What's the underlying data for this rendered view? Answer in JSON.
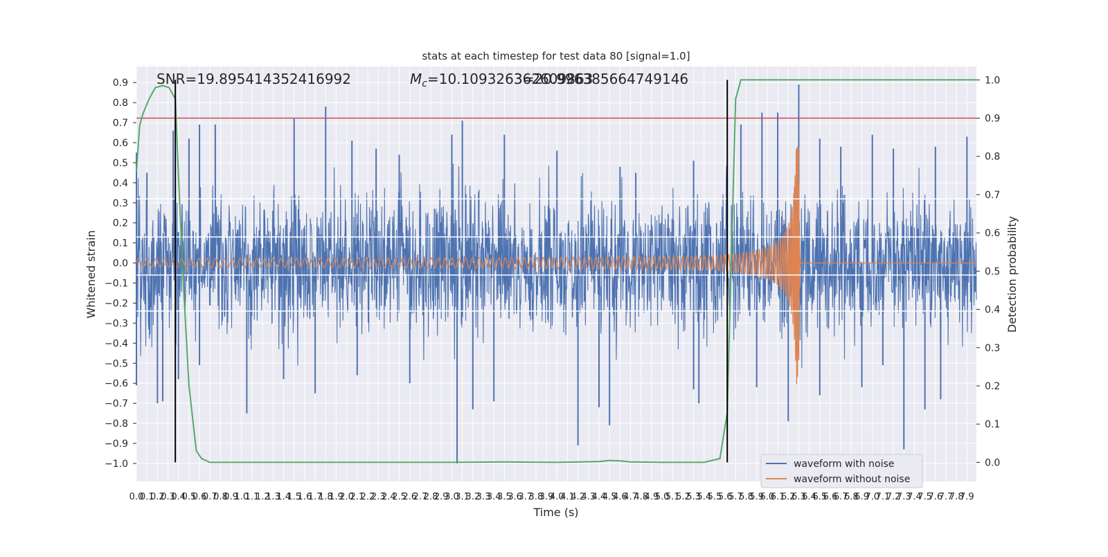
{
  "chart_data": {
    "type": "line",
    "title": "stats at each timestep for test data 80 [signal=1.0]",
    "xlabel": "Time (s)",
    "ylabel": "Whitened strain",
    "y2label": "Detection probability",
    "xlim": [
      0.0,
      7.99
    ],
    "ylim": [
      -1.09,
      0.98
    ],
    "y2lim": [
      -0.05,
      1.035
    ],
    "x_ticks": [
      0.0,
      0.1,
      0.2,
      0.3,
      0.4,
      0.5,
      0.6,
      0.7,
      0.8,
      0.9,
      1.0,
      1.1,
      1.2,
      1.3,
      1.4,
      1.5,
      1.6,
      1.7,
      1.8,
      1.9,
      2.0,
      2.1,
      2.2,
      2.3,
      2.4,
      2.5,
      2.6,
      2.7,
      2.8,
      2.9,
      3.0,
      3.1,
      3.2,
      3.3,
      3.4,
      3.5,
      3.6,
      3.7,
      3.8,
      3.9,
      4.0,
      4.1,
      4.2,
      4.3,
      4.4,
      4.5,
      4.6,
      4.7,
      4.8,
      4.9,
      5.0,
      5.1,
      5.2,
      5.3,
      5.4,
      5.5,
      5.6,
      5.7,
      5.8,
      5.9,
      6.0,
      6.1,
      6.2,
      6.3,
      6.4,
      6.5,
      6.6,
      6.7,
      6.8,
      6.9,
      7.0,
      7.1,
      7.2,
      7.3,
      7.4,
      7.5,
      7.6,
      7.7,
      7.8,
      7.9
    ],
    "y_ticks": [
      -1.0,
      -0.9,
      -0.8,
      -0.7,
      -0.6,
      -0.5,
      -0.4,
      -0.3,
      -0.2,
      -0.1,
      0.0,
      0.1,
      0.2,
      0.3,
      0.4,
      0.5,
      0.6,
      0.7,
      0.8,
      0.9
    ],
    "y2_ticks": [
      0.0,
      0.1,
      0.2,
      0.3,
      0.4,
      0.5,
      0.6,
      0.7,
      0.8,
      0.9,
      1.0
    ],
    "grid": true,
    "legend_position": "bottom-right",
    "annotations": {
      "snr": "SNR=19.895414352416992",
      "mc_prefix": "M",
      "mc_sub": "c",
      "mc_value": "=10.109326362609863",
      "overlap": "3=20.996385664749146"
    },
    "series": [
      {
        "name": "waveform with noise",
        "color": "#4c72b0",
        "axis": "left",
        "noise_band_q": 0.27,
        "spikes": [
          [
            0.0,
            0.55
          ],
          [
            0.1,
            0.45
          ],
          [
            0.35,
            0.66
          ],
          [
            0.5,
            0.62
          ],
          [
            0.6,
            0.69
          ],
          [
            0.75,
            0.69
          ],
          [
            1.5,
            0.72
          ],
          [
            1.8,
            0.78
          ],
          [
            2.05,
            0.61
          ],
          [
            2.28,
            0.57
          ],
          [
            2.5,
            0.54
          ],
          [
            3.0,
            0.64
          ],
          [
            3.1,
            0.71
          ],
          [
            3.5,
            0.64
          ],
          [
            4.0,
            0.56
          ],
          [
            4.6,
            0.48
          ],
          [
            4.75,
            0.45
          ],
          [
            5.3,
            0.51
          ],
          [
            5.75,
            0.69
          ],
          [
            5.95,
            0.75
          ],
          [
            6.1,
            0.75
          ],
          [
            6.3,
            0.89
          ],
          [
            6.5,
            0.62
          ],
          [
            6.7,
            0.58
          ],
          [
            7.0,
            0.64
          ],
          [
            7.2,
            0.57
          ],
          [
            7.6,
            0.58
          ],
          [
            7.9,
            0.63
          ],
          [
            0.0,
            -0.61
          ],
          [
            0.2,
            -0.7
          ],
          [
            0.25,
            -0.69
          ],
          [
            0.4,
            -0.58
          ],
          [
            0.6,
            -0.51
          ],
          [
            1.05,
            -0.75
          ],
          [
            1.4,
            -0.58
          ],
          [
            1.7,
            -0.65
          ],
          [
            2.1,
            -0.56
          ],
          [
            2.6,
            -0.6
          ],
          [
            3.05,
            -1.0
          ],
          [
            3.2,
            -0.73
          ],
          [
            3.4,
            -0.69
          ],
          [
            4.2,
            -0.91
          ],
          [
            4.4,
            -0.72
          ],
          [
            4.5,
            -0.81
          ],
          [
            5.3,
            -0.63
          ],
          [
            5.35,
            -0.7
          ],
          [
            5.9,
            -0.62
          ],
          [
            6.2,
            -0.79
          ],
          [
            6.5,
            -0.66
          ],
          [
            6.9,
            -0.62
          ],
          [
            7.1,
            -0.51
          ],
          [
            7.3,
            -0.93
          ],
          [
            7.5,
            -0.73
          ],
          [
            7.65,
            -0.68
          ]
        ]
      },
      {
        "name": "waveform without noise",
        "color": "#dd8452",
        "axis": "left",
        "merger_time": 6.3,
        "start_amplitude": 0.022,
        "peak_amplitude": 0.62,
        "ringdown_end": 6.32
      },
      {
        "name": "",
        "color": "#55a868",
        "axis": "right",
        "x": [
          0.0,
          0.03,
          0.06,
          0.12,
          0.18,
          0.25,
          0.31,
          0.37,
          0.4,
          0.45,
          0.5,
          0.57,
          0.62,
          0.7,
          0.8,
          1.0,
          2.0,
          3.0,
          3.5,
          4.0,
          4.4,
          4.5,
          4.6,
          4.7,
          5.0,
          5.4,
          5.55,
          5.62,
          5.66,
          5.7,
          5.75,
          5.9,
          7.99
        ],
        "y": [
          0.76,
          0.88,
          0.91,
          0.95,
          0.98,
          0.985,
          0.98,
          0.95,
          0.75,
          0.45,
          0.2,
          0.03,
          0.01,
          0.0,
          0.0,
          0.0,
          0.0,
          0.0,
          0.001,
          0.0,
          0.002,
          0.005,
          0.004,
          0.001,
          0.0,
          0.0,
          0.01,
          0.13,
          0.55,
          0.95,
          1.0,
          1.0,
          1.0
        ]
      }
    ],
    "threshold_line": {
      "y2": 0.9,
      "color": "#c44e52"
    },
    "vertical_lines": [
      0.37,
      5.62
    ],
    "vertical_line_range_y2": [
      0.0,
      1.0
    ],
    "white_lines_y": [
      -0.24,
      -0.06,
      0.13,
      0.32
    ],
    "legend": [
      "waveform with noise",
      "waveform without noise"
    ]
  }
}
